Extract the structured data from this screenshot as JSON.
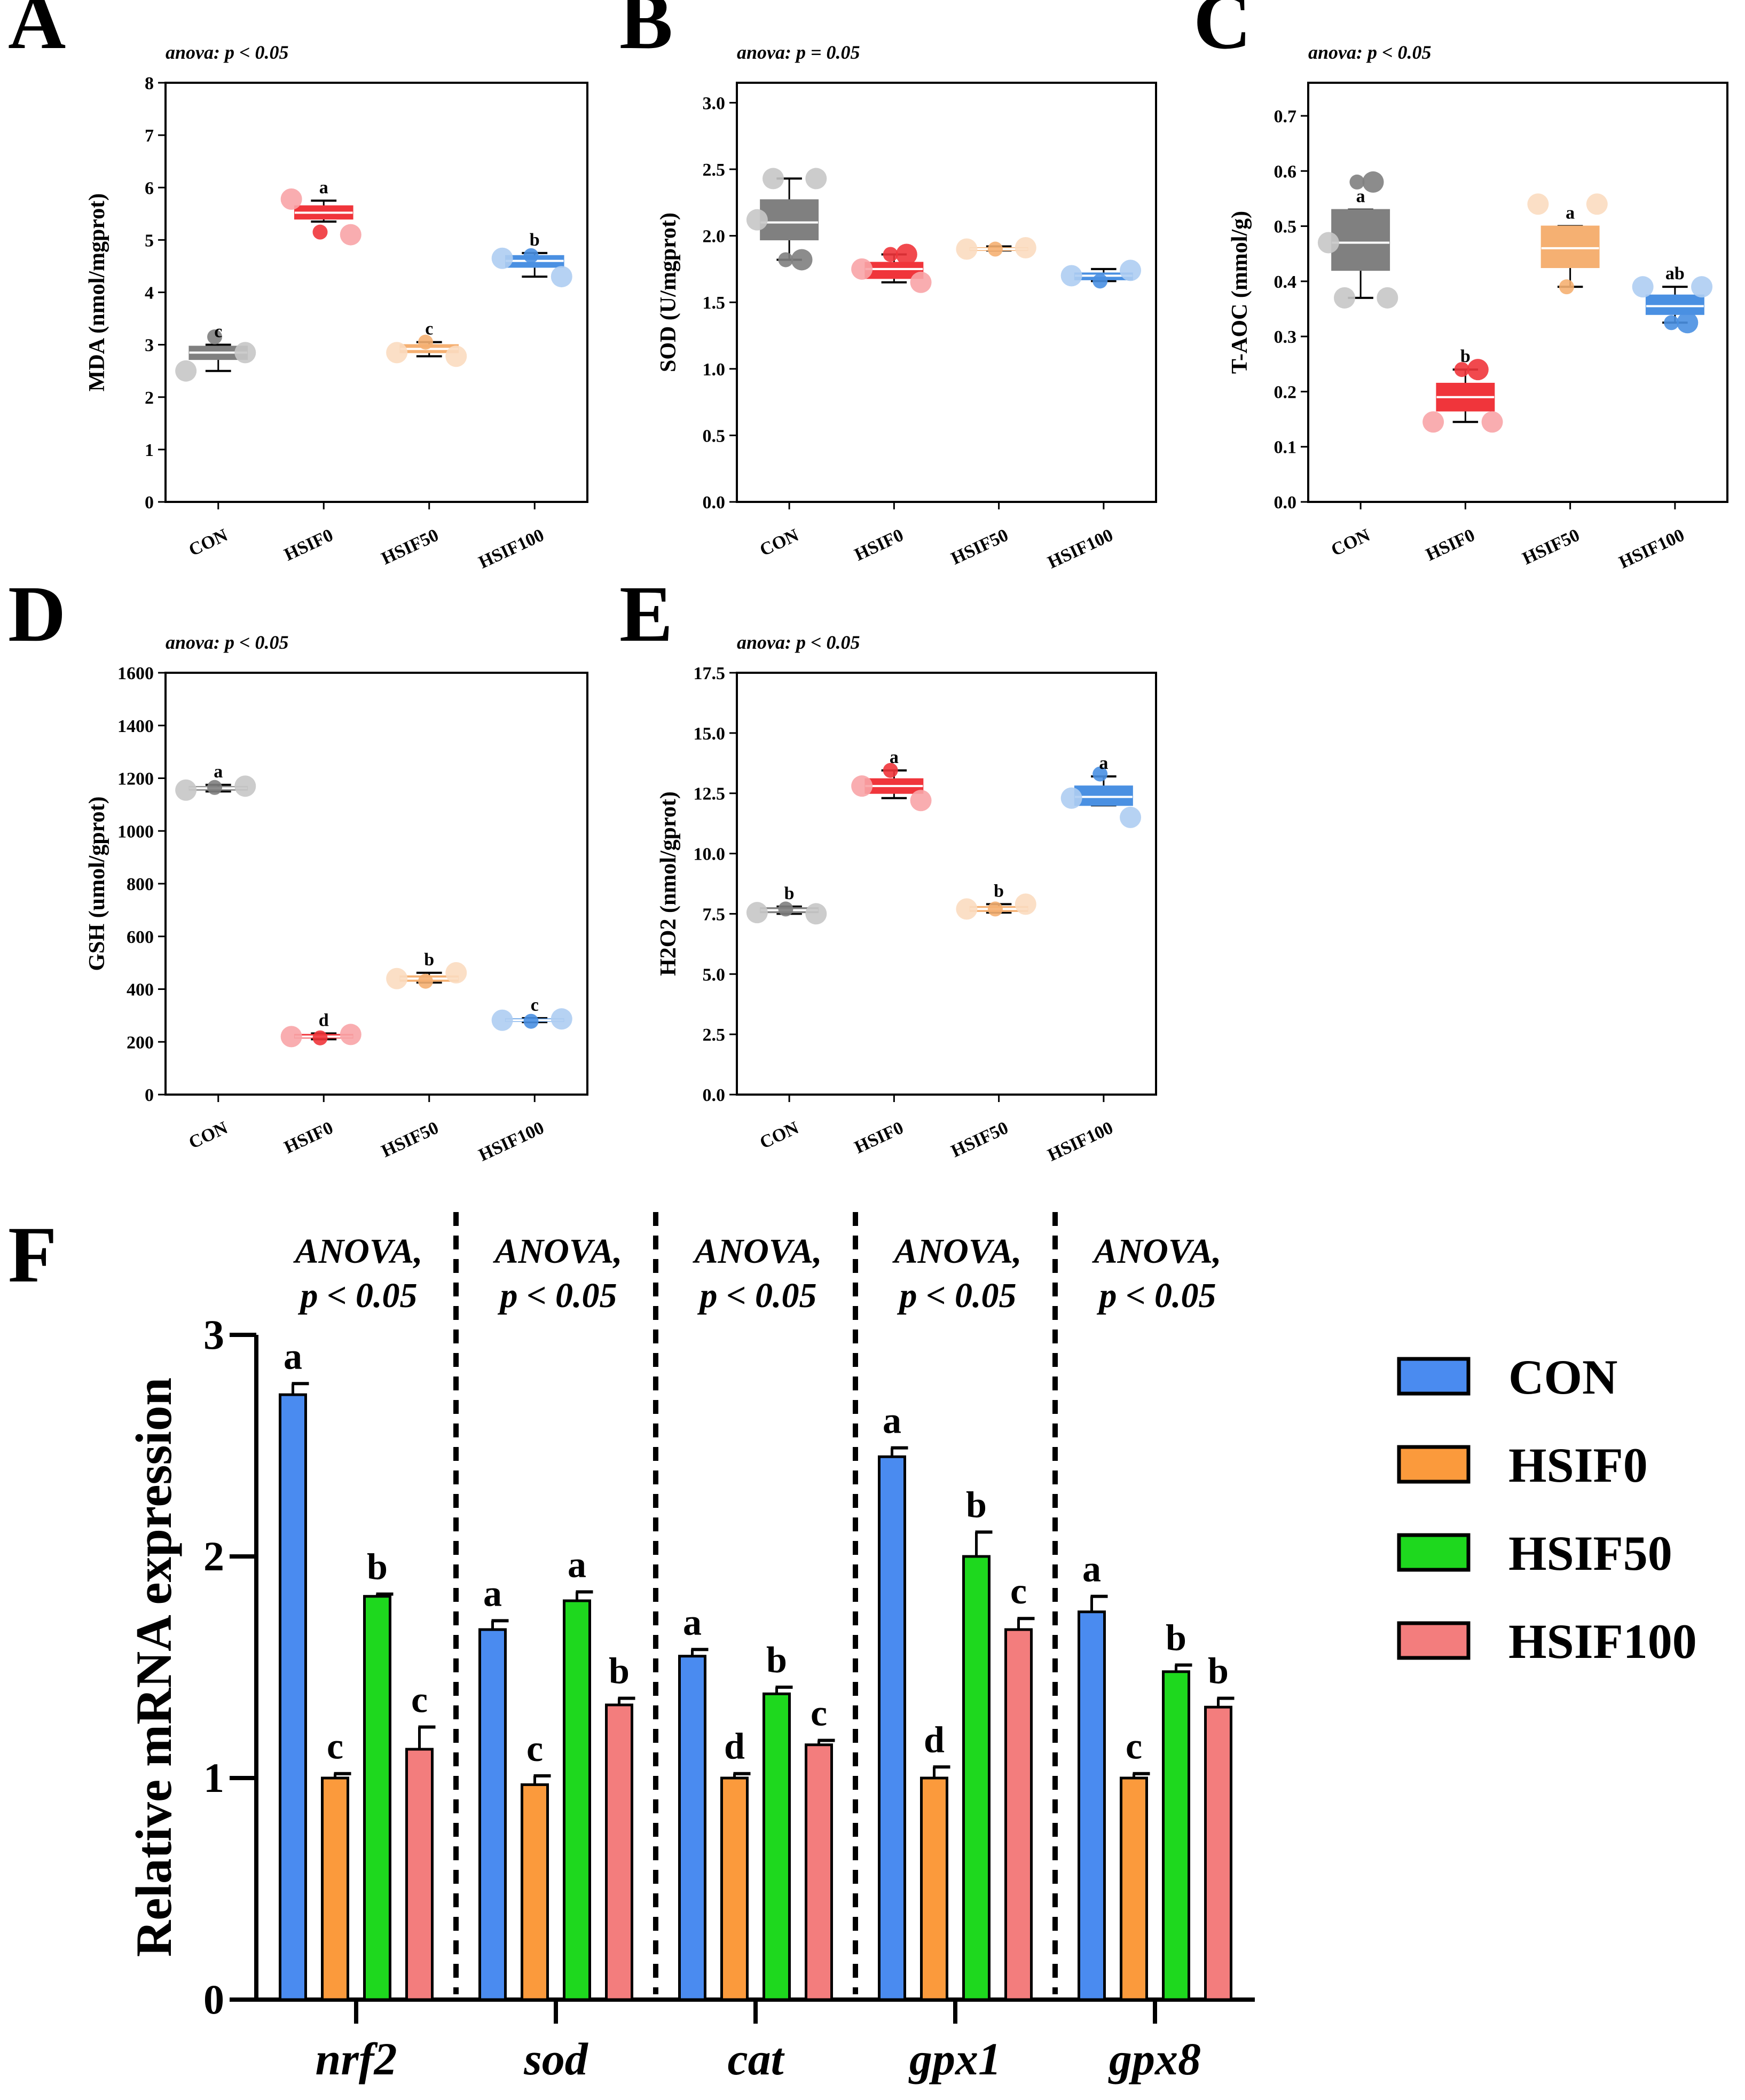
{
  "groups": [
    "CON",
    "HSIF0",
    "HSIF50",
    "HSIF100"
  ],
  "colors": {
    "box": [
      "#808080",
      "#f0353b",
      "#f5b072",
      "#4a90e2"
    ],
    "bar": [
      "#4a8bf0",
      "#fb9a3c",
      "#1ed81e",
      "#f37d7d"
    ],
    "axis": "#000000"
  },
  "chart_data": [
    {
      "panel": "A",
      "type": "box",
      "title": "anova: p < 0.05",
      "ylabel": "MDA (nmol/mgprot)",
      "ylim": [
        0,
        8
      ],
      "yticks": [
        "0",
        "1",
        "2",
        "3",
        "4",
        "5",
        "6",
        "7",
        "8"
      ],
      "categories": [
        "CON",
        "HSIF0",
        "HSIF50",
        "HSIF100"
      ],
      "boxes": [
        {
          "q1": 2.72,
          "median": 2.85,
          "q3": 2.97,
          "whisker_low": 2.5,
          "whisker_high": 3.0,
          "points": [
            2.5,
            3.15,
            2.85
          ],
          "letter": "c"
        },
        {
          "q1": 5.4,
          "median": 5.52,
          "q3": 5.65,
          "whisker_low": 5.35,
          "whisker_high": 5.75,
          "points": [
            5.78,
            5.15,
            5.1
          ],
          "letter": "a"
        },
        {
          "q1": 2.85,
          "median": 2.92,
          "q3": 3.0,
          "whisker_low": 2.78,
          "whisker_high": 3.05,
          "points": [
            2.85,
            3.05,
            2.78
          ],
          "letter": "c"
        },
        {
          "q1": 4.48,
          "median": 4.6,
          "q3": 4.7,
          "whisker_low": 4.3,
          "whisker_high": 4.75,
          "points": [
            4.65,
            4.7,
            4.3
          ],
          "letter": "b"
        }
      ]
    },
    {
      "panel": "B",
      "type": "box",
      "title": "anova: p = 0.05",
      "ylabel": "SOD (U/mgprot)",
      "ylim": [
        0,
        3.15
      ],
      "yticks": [
        "0.0",
        "0.5",
        "1.0",
        "1.5",
        "2.0",
        "2.5",
        "3.0"
      ],
      "categories": [
        "CON",
        "HSIF0",
        "HSIF50",
        "HSIF100"
      ],
      "boxes": [
        {
          "q1": 1.97,
          "median": 2.1,
          "q3": 2.27,
          "whisker_low": 1.82,
          "whisker_high": 2.43,
          "points": [
            2.12,
            1.82,
            2.43,
            1.82,
            2.43
          ],
          "letter": ""
        },
        {
          "q1": 1.68,
          "median": 1.75,
          "q3": 1.8,
          "whisker_low": 1.65,
          "whisker_high": 1.86,
          "points": [
            1.75,
            1.86,
            1.65,
            1.86
          ],
          "letter": ""
        },
        {
          "q1": 1.89,
          "median": 1.9,
          "q3": 1.91,
          "whisker_low": 1.89,
          "whisker_high": 1.92,
          "points": [
            1.9,
            1.9,
            1.91
          ],
          "letter": ""
        },
        {
          "q1": 1.67,
          "median": 1.7,
          "q3": 1.72,
          "whisker_low": 1.66,
          "whisker_high": 1.75,
          "points": [
            1.7,
            1.66,
            1.74
          ],
          "letter": ""
        }
      ]
    },
    {
      "panel": "C",
      "type": "box",
      "title": "anova: p < 0.05",
      "ylabel": "T-AOC (mmol/g)",
      "ylim": [
        0,
        0.76
      ],
      "yticks": [
        "0.0",
        "0.1",
        "0.2",
        "0.3",
        "0.4",
        "0.5",
        "0.6",
        "0.7"
      ],
      "categories": [
        "CON",
        "HSIF0",
        "HSIF50",
        "HSIF100"
      ],
      "boxes": [
        {
          "q1": 0.42,
          "median": 0.47,
          "q3": 0.53,
          "whisker_low": 0.37,
          "whisker_high": 0.53,
          "points": [
            0.47,
            0.58,
            0.37,
            0.58,
            0.37
          ],
          "letter": "a"
        },
        {
          "q1": 0.165,
          "median": 0.19,
          "q3": 0.215,
          "whisker_low": 0.145,
          "whisker_high": 0.24,
          "points": [
            0.145,
            0.24,
            0.145,
            0.24
          ],
          "letter": "b"
        },
        {
          "q1": 0.425,
          "median": 0.46,
          "q3": 0.5,
          "whisker_low": 0.39,
          "whisker_high": 0.5,
          "points": [
            0.54,
            0.39,
            0.54
          ],
          "letter": "a"
        },
        {
          "q1": 0.34,
          "median": 0.355,
          "q3": 0.375,
          "whisker_low": 0.325,
          "whisker_high": 0.39,
          "points": [
            0.39,
            0.325,
            0.39,
            0.325
          ],
          "letter": "ab"
        }
      ]
    },
    {
      "panel": "D",
      "type": "box",
      "title": "anova: p < 0.05",
      "ylabel": "GSH (umol/gprot)",
      "ylim": [
        0,
        1600
      ],
      "yticks": [
        "0",
        "200",
        "400",
        "600",
        "800",
        "1000",
        "1200",
        "1400",
        "1600"
      ],
      "categories": [
        "CON",
        "HSIF0",
        "HSIF50",
        "HSIF100"
      ],
      "boxes": [
        {
          "q1": 1155,
          "median": 1162,
          "q3": 1168,
          "whisker_low": 1150,
          "whisker_high": 1175,
          "points": [
            1155,
            1165,
            1170
          ],
          "letter": "a"
        },
        {
          "q1": 215,
          "median": 220,
          "q3": 228,
          "whisker_low": 210,
          "whisker_high": 232,
          "points": [
            220,
            215,
            228
          ],
          "letter": "d"
        },
        {
          "q1": 430,
          "median": 440,
          "q3": 450,
          "whisker_low": 425,
          "whisker_high": 462,
          "points": [
            440,
            430,
            462
          ],
          "letter": "b"
        },
        {
          "q1": 278,
          "median": 282,
          "q3": 287,
          "whisker_low": 275,
          "whisker_high": 290,
          "points": [
            282,
            278,
            287
          ],
          "letter": "c"
        }
      ]
    },
    {
      "panel": "E",
      "type": "box",
      "title": "anova: p < 0.05",
      "ylabel": "H2O2 (nmol/gprot)",
      "ylim": [
        0,
        17.5
      ],
      "yticks": [
        "0.0",
        "2.5",
        "5.0",
        "7.5",
        "10.0",
        "12.5",
        "15.0",
        "17.5"
      ],
      "categories": [
        "CON",
        "HSIF0",
        "HSIF50",
        "HSIF100"
      ],
      "boxes": [
        {
          "q1": 7.55,
          "median": 7.65,
          "q3": 7.75,
          "whisker_low": 7.5,
          "whisker_high": 7.8,
          "points": [
            7.55,
            7.7,
            7.5
          ],
          "letter": "b"
        },
        {
          "q1": 12.5,
          "median": 12.8,
          "q3": 13.1,
          "whisker_low": 12.3,
          "whisker_high": 13.45,
          "points": [
            12.8,
            13.45,
            12.2
          ],
          "letter": "a"
        },
        {
          "q1": 7.6,
          "median": 7.7,
          "q3": 7.8,
          "whisker_low": 7.55,
          "whisker_high": 7.9,
          "points": [
            7.7,
            7.7,
            7.9
          ],
          "letter": "b"
        },
        {
          "q1": 12.0,
          "median": 12.35,
          "q3": 12.8,
          "whisker_low": 12.0,
          "whisker_high": 13.2,
          "points": [
            12.3,
            13.3,
            11.5
          ],
          "letter": "a"
        }
      ]
    },
    {
      "panel": "F",
      "type": "bar",
      "ylabel": "Relative mRNA expression",
      "ylim": [
        0,
        3
      ],
      "yticks": [
        "0",
        "1",
        "2",
        "3"
      ],
      "categories": [
        "nrf2",
        "sod",
        "cat",
        "gpx1",
        "gpx8"
      ],
      "anova_label": "ANOVA,",
      "p_label": "p < 0.05",
      "series": [
        {
          "name": "CON",
          "values": [
            2.73,
            1.67,
            1.55,
            2.45,
            1.75
          ],
          "errors": [
            0.05,
            0.04,
            0.03,
            0.04,
            0.07
          ],
          "letters": [
            "a",
            "a",
            "a",
            "a",
            "a"
          ]
        },
        {
          "name": "HSIF0",
          "values": [
            1.0,
            0.97,
            1.0,
            1.0,
            1.0
          ],
          "errors": [
            0.02,
            0.04,
            0.02,
            0.05,
            0.02
          ],
          "letters": [
            "c",
            "c",
            "d",
            "d",
            "c"
          ]
        },
        {
          "name": "HSIF50",
          "values": [
            1.82,
            1.8,
            1.38,
            2.0,
            1.48
          ],
          "errors": [
            0.01,
            0.04,
            0.03,
            0.11,
            0.03
          ],
          "letters": [
            "b",
            "a",
            "b",
            "b",
            "b"
          ]
        },
        {
          "name": "HSIF100",
          "values": [
            1.13,
            1.33,
            1.15,
            1.67,
            1.32
          ],
          "errors": [
            0.1,
            0.03,
            0.02,
            0.05,
            0.04
          ],
          "letters": [
            "c",
            "b",
            "c",
            "c",
            "b"
          ]
        }
      ],
      "legend": [
        "CON",
        "HSIF0",
        "HSIF50",
        "HSIF100"
      ]
    }
  ]
}
